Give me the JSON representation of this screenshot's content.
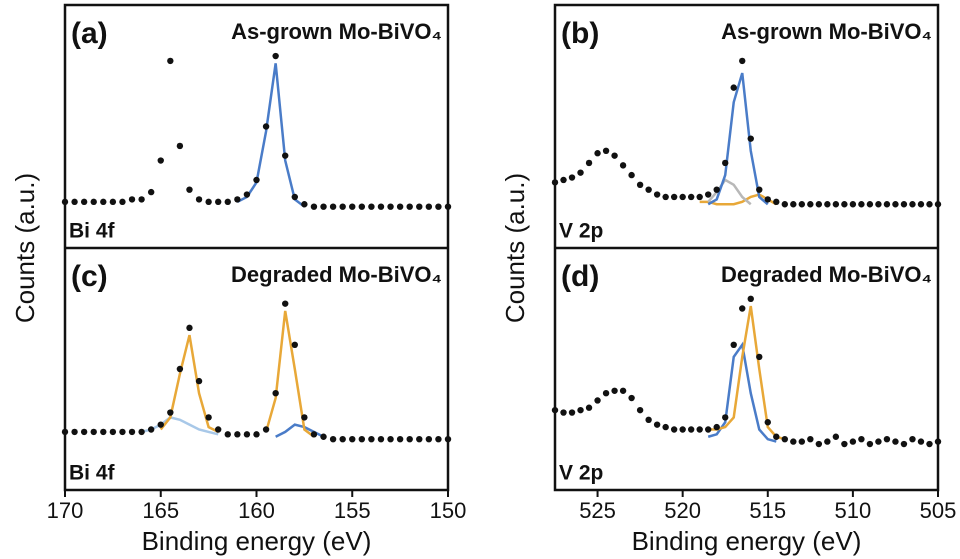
{
  "chart_data": [
    {
      "type": "line",
      "panel_label": "(a)",
      "title": "As-grown Mo-BiVO₄",
      "region_label": "Bi 4f",
      "ylabel": "Counts (a.u.)",
      "xlim": [
        170,
        150
      ],
      "ylim": [
        0,
        1
      ],
      "x": [
        170,
        169.5,
        169,
        168.5,
        168,
        167.5,
        167,
        166.5,
        166,
        165.5,
        165,
        164.5,
        164,
        163.5,
        163,
        162.5,
        162,
        161.5,
        161,
        160.5,
        160,
        159.5,
        159,
        158.5,
        158,
        157.5,
        157,
        156.5,
        156,
        155.5,
        155,
        154.5,
        154,
        153.5,
        153,
        152.5,
        152,
        151.5,
        151,
        150.5,
        150
      ],
      "series": [
        {
          "style": "line",
          "color": "#4a7cc8",
          "values": [
            null,
            null,
            null,
            null,
            null,
            null,
            null,
            null,
            null,
            null,
            null,
            null,
            null,
            null,
            null,
            null,
            null,
            null,
            0.19,
            0.21,
            0.27,
            0.48,
            0.76,
            0.36,
            0.2,
            0.17,
            null,
            null,
            null,
            null,
            null,
            null,
            null,
            null,
            null,
            null,
            null,
            null,
            null,
            null,
            null
          ]
        },
        {
          "style": "markers",
          "color": "#111111",
          "values": [
            0.19,
            0.19,
            0.19,
            0.19,
            0.19,
            0.19,
            0.19,
            0.2,
            0.2,
            0.23,
            0.36,
            0.77,
            0.42,
            0.24,
            0.2,
            0.19,
            0.19,
            0.19,
            0.2,
            0.22,
            0.28,
            0.5,
            0.79,
            0.38,
            0.21,
            0.18,
            0.17,
            0.17,
            0.17,
            0.17,
            0.17,
            0.17,
            0.17,
            0.17,
            0.17,
            0.17,
            0.17,
            0.17,
            0.17,
            0.17,
            0.17
          ]
        }
      ]
    },
    {
      "type": "line",
      "panel_label": "(b)",
      "title": "As-grown Mo-BiVO₄",
      "region_label": "V 2p",
      "ylabel": "Counts (a.u.)",
      "xlim": [
        527.5,
        505
      ],
      "ylim": [
        0,
        1
      ],
      "x": [
        527.5,
        527,
        526.5,
        526,
        525.5,
        525,
        524.5,
        524,
        523.5,
        523,
        522.5,
        522,
        521.5,
        521,
        520.5,
        520,
        519.5,
        519,
        518.5,
        518,
        517.5,
        517,
        516.5,
        516,
        515.5,
        515,
        514.5,
        514,
        513.5,
        513,
        512.5,
        512,
        511.5,
        511,
        510.5,
        510,
        509.5,
        509,
        508.5,
        508,
        507.5,
        507,
        506.5,
        506,
        505.5,
        505
      ],
      "series": [
        {
          "style": "line",
          "color": "#e8a838",
          "values": [
            null,
            null,
            null,
            null,
            null,
            null,
            null,
            null,
            null,
            null,
            null,
            null,
            null,
            null,
            null,
            null,
            null,
            0.19,
            0.19,
            0.18,
            0.18,
            0.18,
            0.19,
            0.21,
            0.22,
            0.2,
            0.18,
            null,
            null,
            null,
            null,
            null,
            null,
            null,
            null,
            null,
            null,
            null,
            null,
            null,
            null,
            null,
            null,
            null,
            null,
            null
          ]
        },
        {
          "style": "line",
          "color": "#b8b8b8",
          "values": [
            null,
            null,
            null,
            null,
            null,
            null,
            null,
            null,
            null,
            null,
            null,
            null,
            null,
            null,
            null,
            null,
            null,
            null,
            0.19,
            0.23,
            0.28,
            0.26,
            0.21,
            0.18,
            null,
            null,
            null,
            null,
            null,
            null,
            null,
            null,
            null,
            null,
            null,
            null,
            null,
            null,
            null,
            null,
            null,
            null,
            null,
            null,
            null,
            null
          ]
        },
        {
          "style": "line",
          "color": "#4a7cc8",
          "values": [
            null,
            null,
            null,
            null,
            null,
            null,
            null,
            null,
            null,
            null,
            null,
            null,
            null,
            null,
            null,
            null,
            null,
            null,
            0.18,
            0.2,
            0.3,
            0.6,
            0.72,
            0.4,
            0.21,
            0.18,
            null,
            null,
            null,
            null,
            null,
            null,
            null,
            null,
            null,
            null,
            null,
            null,
            null,
            null,
            null,
            null,
            null,
            null,
            null,
            null
          ]
        },
        {
          "style": "markers",
          "color": "#111111",
          "values": [
            0.27,
            0.28,
            0.29,
            0.31,
            0.35,
            0.39,
            0.4,
            0.38,
            0.34,
            0.3,
            0.26,
            0.24,
            0.22,
            0.21,
            0.21,
            0.21,
            0.21,
            0.21,
            0.22,
            0.24,
            0.35,
            0.66,
            0.77,
            0.45,
            0.24,
            0.2,
            0.19,
            0.18,
            0.18,
            0.18,
            0.18,
            0.18,
            0.18,
            0.18,
            0.18,
            0.18,
            0.18,
            0.18,
            0.18,
            0.18,
            0.18,
            0.18,
            0.18,
            0.18,
            0.18,
            0.18
          ]
        }
      ]
    },
    {
      "type": "line",
      "panel_label": "(c)",
      "title": "Degraded Mo-BiVO₄",
      "region_label": "Bi 4f",
      "xlabel": "Binding energy (eV)",
      "xlim": [
        170,
        150
      ],
      "ylim": [
        0,
        1
      ],
      "xticks": [
        170,
        165,
        160,
        155,
        150
      ],
      "x": [
        170,
        169.5,
        169,
        168.5,
        168,
        167.5,
        167,
        166.5,
        166,
        165.5,
        165,
        164.5,
        164,
        163.5,
        163,
        162.5,
        162,
        161.5,
        161,
        160.5,
        160,
        159.5,
        159,
        158.5,
        158,
        157.5,
        157,
        156.5,
        156,
        155.5,
        155,
        154.5,
        154,
        153.5,
        153,
        152.5,
        152,
        151.5,
        151,
        150.5,
        150
      ],
      "series": [
        {
          "style": "line",
          "color": "#a8c8e8",
          "values": [
            null,
            null,
            null,
            null,
            null,
            null,
            null,
            null,
            0.24,
            0.25,
            0.27,
            0.3,
            0.29,
            0.27,
            0.25,
            0.24,
            0.23,
            null,
            null,
            null,
            null,
            null,
            null,
            null,
            null,
            null,
            null,
            null,
            null,
            null,
            null,
            null,
            null,
            null,
            null,
            null,
            null,
            null,
            null,
            null,
            null
          ]
        },
        {
          "style": "line",
          "color": "#4a7cc8",
          "values": [
            null,
            null,
            null,
            null,
            null,
            null,
            null,
            null,
            null,
            null,
            null,
            null,
            null,
            null,
            null,
            null,
            null,
            null,
            null,
            null,
            null,
            null,
            0.22,
            0.24,
            0.27,
            0.26,
            0.24,
            0.22,
            null,
            null,
            null,
            null,
            null,
            null,
            null,
            null,
            null,
            null,
            null,
            null,
            null
          ]
        },
        {
          "style": "line",
          "color": "#e8a838",
          "values": [
            null,
            null,
            null,
            null,
            null,
            null,
            null,
            null,
            null,
            null,
            0.25,
            0.3,
            0.48,
            0.64,
            0.4,
            0.26,
            0.24,
            null,
            null,
            null,
            null,
            0.24,
            0.38,
            0.74,
            0.5,
            0.25,
            0.22,
            null,
            null,
            null,
            null,
            null,
            null,
            null,
            null,
            null,
            null,
            null,
            null,
            null,
            null
          ]
        },
        {
          "style": "markers",
          "color": "#111111",
          "values": [
            0.24,
            0.24,
            0.24,
            0.24,
            0.24,
            0.24,
            0.24,
            0.24,
            0.24,
            0.25,
            0.27,
            0.32,
            0.5,
            0.67,
            0.45,
            0.3,
            0.25,
            0.23,
            0.23,
            0.23,
            0.23,
            0.25,
            0.4,
            0.77,
            0.6,
            0.3,
            0.23,
            0.22,
            0.21,
            0.21,
            0.21,
            0.21,
            0.21,
            0.21,
            0.21,
            0.21,
            0.21,
            0.21,
            0.21,
            0.21,
            0.21
          ]
        }
      ]
    },
    {
      "type": "line",
      "panel_label": "(d)",
      "title": "Degraded Mo-BiVO₄",
      "region_label": "V 2p",
      "xlabel": "Binding energy (eV)",
      "xlim": [
        527.5,
        505
      ],
      "ylim": [
        0,
        1
      ],
      "xticks": [
        525,
        520,
        515,
        510,
        505
      ],
      "x": [
        527.5,
        527,
        526.5,
        526,
        525.5,
        525,
        524.5,
        524,
        523.5,
        523,
        522.5,
        522,
        521.5,
        521,
        520.5,
        520,
        519.5,
        519,
        518.5,
        518,
        517.5,
        517,
        516.5,
        516,
        515.5,
        515,
        514.5,
        514,
        513.5,
        513,
        512.5,
        512,
        511.5,
        511,
        510.5,
        510,
        509.5,
        509,
        508.5,
        508,
        507.5,
        507,
        506.5,
        506,
        505.5,
        505
      ],
      "series": [
        {
          "style": "line",
          "color": "#4a7cc8",
          "values": [
            null,
            null,
            null,
            null,
            null,
            null,
            null,
            null,
            null,
            null,
            null,
            null,
            null,
            null,
            null,
            null,
            null,
            null,
            0.22,
            0.23,
            0.28,
            0.55,
            0.6,
            0.4,
            0.25,
            0.21,
            0.2,
            null,
            null,
            null,
            null,
            null,
            null,
            null,
            null,
            null,
            null,
            null,
            null,
            null,
            null,
            null,
            null,
            null,
            null,
            null
          ]
        },
        {
          "style": "line",
          "color": "#e8a838",
          "values": [
            null,
            null,
            null,
            null,
            null,
            null,
            null,
            null,
            null,
            null,
            null,
            null,
            null,
            null,
            null,
            null,
            null,
            null,
            0.25,
            0.25,
            0.26,
            0.3,
            0.55,
            0.76,
            0.5,
            0.26,
            0.22,
            0.21,
            null,
            null,
            null,
            null,
            null,
            null,
            null,
            null,
            null,
            null,
            null,
            null,
            null,
            null,
            null,
            null,
            null,
            null
          ]
        },
        {
          "style": "markers",
          "color": "#111111",
          "values": [
            0.33,
            0.32,
            0.32,
            0.33,
            0.34,
            0.37,
            0.4,
            0.41,
            0.41,
            0.38,
            0.33,
            0.29,
            0.27,
            0.26,
            0.25,
            0.25,
            0.25,
            0.25,
            0.25,
            0.26,
            0.3,
            0.6,
            0.75,
            0.79,
            0.55,
            0.28,
            0.22,
            0.21,
            0.2,
            0.2,
            0.21,
            0.19,
            0.2,
            0.22,
            0.19,
            0.2,
            0.21,
            0.19,
            0.2,
            0.21,
            0.2,
            0.19,
            0.21,
            0.2,
            0.19,
            0.2
          ]
        }
      ]
    }
  ]
}
